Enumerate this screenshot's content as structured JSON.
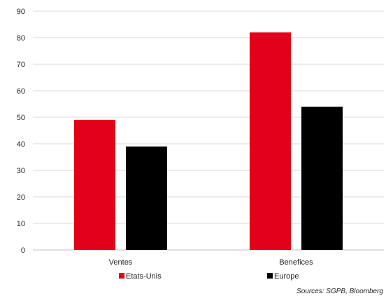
{
  "chart_data": {
    "type": "bar",
    "title": "",
    "xlabel": "",
    "ylabel": "",
    "categories": [
      "Ventes",
      "Benefices"
    ],
    "series": [
      {
        "name": "Etats-Unis",
        "values": [
          49,
          82
        ],
        "color": "#e3001b"
      },
      {
        "name": "Europe",
        "values": [
          39,
          54
        ],
        "color": "#000000"
      }
    ],
    "ylim": [
      0,
      90
    ],
    "yticks": [
      "0",
      "10",
      "20",
      "30",
      "40",
      "50",
      "60",
      "70",
      "80",
      "90"
    ],
    "grid": true,
    "legend_position": "bottom"
  },
  "source_text": "Sources: SGPB, Bloomberg"
}
